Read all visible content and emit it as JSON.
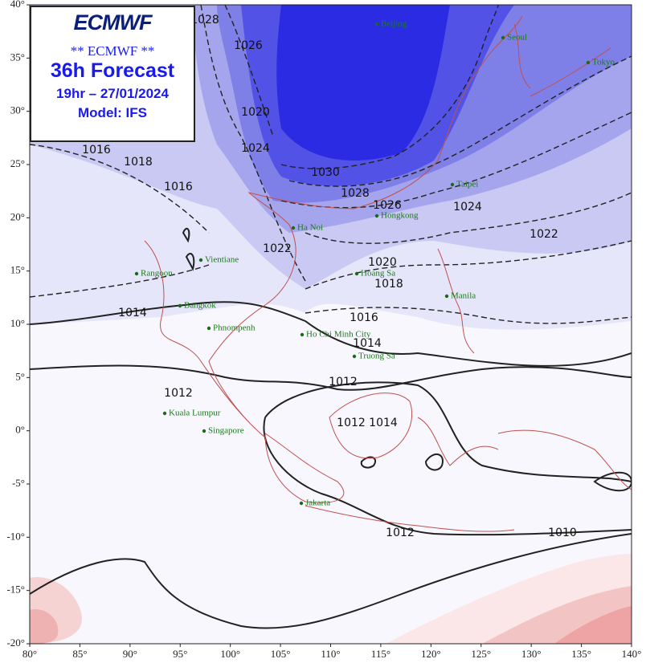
{
  "header": {
    "logo": "ECMWF",
    "subtitle": "** ECMWF **",
    "title": "36h Forecast",
    "time": "19hr – 27/01/2024",
    "model": "Model: IFS"
  },
  "axes": {
    "lat_ticks": [
      {
        "value": 40,
        "label": "40°"
      },
      {
        "value": 35,
        "label": "35°"
      },
      {
        "value": 30,
        "label": "30°"
      },
      {
        "value": 25,
        "label": "25°"
      },
      {
        "value": 20,
        "label": "20°"
      },
      {
        "value": 15,
        "label": "15°"
      },
      {
        "value": 10,
        "label": "10°"
      },
      {
        "value": 5,
        "label": "5°"
      },
      {
        "value": 0,
        "label": "0°"
      },
      {
        "value": -5,
        "label": "-5°"
      },
      {
        "value": -10,
        "label": "-10°"
      },
      {
        "value": -15,
        "label": "-15°"
      },
      {
        "value": -20,
        "label": "-20°"
      }
    ],
    "lon_ticks": [
      {
        "value": 80,
        "label": "80°"
      },
      {
        "value": 85,
        "label": "85°"
      },
      {
        "value": 90,
        "label": "90°"
      },
      {
        "value": 95,
        "label": "95°"
      },
      {
        "value": 100,
        "label": "100°"
      },
      {
        "value": 105,
        "label": "105°"
      },
      {
        "value": 110,
        "label": "110°"
      },
      {
        "value": 115,
        "label": "115°"
      },
      {
        "value": 120,
        "label": "120°"
      },
      {
        "value": 125,
        "label": "125°"
      },
      {
        "value": 130,
        "label": "130°"
      },
      {
        "value": 135,
        "label": "135°"
      },
      {
        "value": 140,
        "label": "140°"
      }
    ]
  },
  "cities": [
    "Beijing",
    "Seoul",
    "Tokyo",
    "Taipei",
    "Hongkong",
    "Ha Noi",
    "Vientiane",
    "Rangoon",
    "Hoang Sa",
    "Manila",
    "Bangkok",
    "Phnompenh",
    "Ho Chi Minh City",
    "Truong Sa",
    "Kuala Lumpur",
    "Singapore",
    "Jakarta"
  ],
  "isobar_labels": [
    "1030",
    "1028",
    "1026",
    "1024",
    "1022",
    "1020",
    "1018",
    "1016",
    "1014",
    "1014",
    "1012",
    "1012",
    "1012",
    "1014",
    "1012",
    "1010",
    "1016",
    "1018",
    "1016",
    "1022",
    "1028",
    "1026",
    "1020",
    "1024"
  ]
}
